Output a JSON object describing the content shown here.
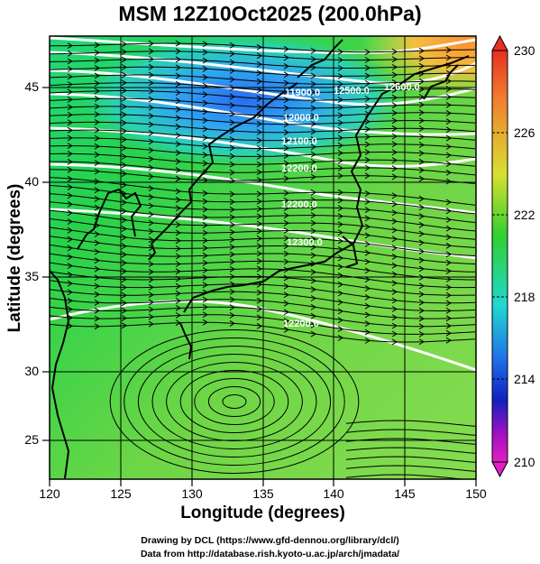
{
  "title": "MSM 12Z10Oct2025 (200.0hPa)",
  "map": {
    "xlabel": "Longitude (degrees)",
    "ylabel": "Latitude  (degrees)",
    "xlim": [
      120,
      150
    ],
    "ylim": [
      22.4,
      47.6
    ],
    "x_ticks": [
      "120",
      "125",
      "130",
      "135",
      "140",
      "145",
      "150"
    ],
    "y_ticks": [
      "25",
      "30",
      "35",
      "40",
      "45"
    ],
    "contour_labels": [
      "12200.0",
      "12300.0",
      "12400.0",
      "12500.0",
      "12600.0",
      "12700.0",
      "12800.0",
      "11900.0",
      "12000.0",
      "12100.0"
    ]
  },
  "colorbar": {
    "labels": [
      "230",
      "226",
      "222",
      "218",
      "214",
      "210"
    ],
    "min": 210,
    "max": 230
  },
  "credits": {
    "line1": "Drawing by DCL (https://www.gfd-dennou.org/library/dcl/)",
    "line2": "Data from http://database.rish.kyoto-u.ac.jp/arch/jmadata/"
  }
}
